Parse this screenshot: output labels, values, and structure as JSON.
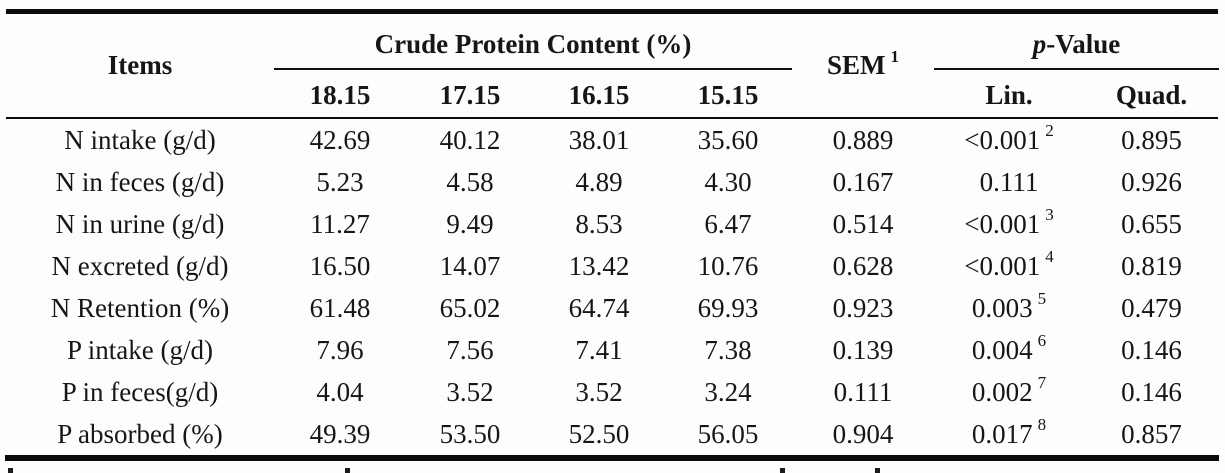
{
  "table": {
    "header": {
      "items": "Items",
      "crude_protein_group": "Crude Protein Content (%)",
      "sem": "SEM",
      "sem_sup": "1",
      "p_value_italic": "p",
      "p_value_rest": "-Value",
      "level_1": "18.15",
      "level_2": "17.15",
      "level_3": "16.15",
      "level_4": "15.15",
      "lin": "Lin.",
      "quad": "Quad."
    },
    "rows": [
      {
        "item": "N intake (g/d)",
        "v1": "42.69",
        "v2": "40.12",
        "v3": "38.01",
        "v4": "35.60",
        "sem": "0.889",
        "lin": "<0.001",
        "lin_sup": "2",
        "quad": "0.895"
      },
      {
        "item": "N in feces (g/d)",
        "v1": "5.23",
        "v2": "4.58",
        "v3": "4.89",
        "v4": "4.30",
        "sem": "0.167",
        "lin": "0.111",
        "lin_sup": "",
        "quad": "0.926"
      },
      {
        "item": "N in urine (g/d)",
        "v1": "11.27",
        "v2": "9.49",
        "v3": "8.53",
        "v4": "6.47",
        "sem": "0.514",
        "lin": "<0.001",
        "lin_sup": "3",
        "quad": "0.655"
      },
      {
        "item": "N excreted (g/d)",
        "v1": "16.50",
        "v2": "14.07",
        "v3": "13.42",
        "v4": "10.76",
        "sem": "0.628",
        "lin": "<0.001",
        "lin_sup": "4",
        "quad": "0.819"
      },
      {
        "item": "N Retention (%)",
        "v1": "61.48",
        "v2": "65.02",
        "v3": "64.74",
        "v4": "69.93",
        "sem": "0.923",
        "lin": "0.003",
        "lin_sup": "5",
        "quad": "0.479"
      },
      {
        "item": "P intake (g/d)",
        "v1": "7.96",
        "v2": "7.56",
        "v3": "7.41",
        "v4": "7.38",
        "sem": "0.139",
        "lin": "0.004",
        "lin_sup": "6",
        "quad": "0.146"
      },
      {
        "item": "P in feces(g/d)",
        "v1": "4.04",
        "v2": "3.52",
        "v3": "3.52",
        "v4": "3.24",
        "sem": "0.111",
        "lin": "0.002",
        "lin_sup": "7",
        "quad": "0.146"
      },
      {
        "item": "P absorbed (%)",
        "v1": "49.39",
        "v2": "53.50",
        "v3": "52.50",
        "v4": "56.05",
        "sem": "0.904",
        "lin": "0.017",
        "lin_sup": "8",
        "quad": "0.857"
      }
    ]
  }
}
